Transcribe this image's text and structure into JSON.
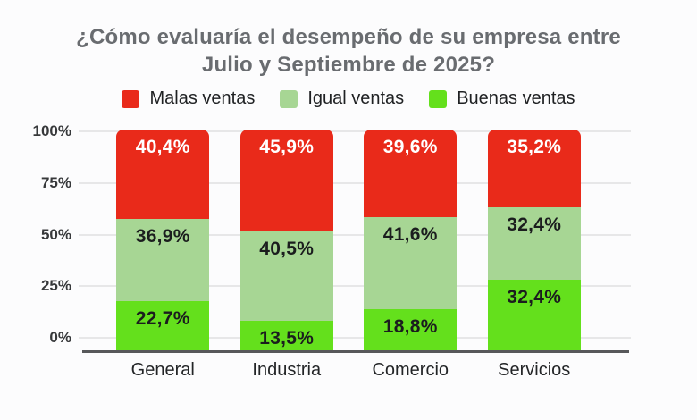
{
  "title": {
    "line1": "¿Cómo evaluaría el desempeño de su empresa entre",
    "line2": "Julio y Septiembre de 2025?"
  },
  "legend": [
    {
      "label": "Malas ventas",
      "color": "#e92a1a"
    },
    {
      "label": "Igual ventas",
      "color": "#a7d694"
    },
    {
      "label": "Buenas ventas",
      "color": "#64e01c"
    }
  ],
  "chart_data": {
    "type": "bar",
    "stacked": true,
    "title": "¿Cómo evaluaría el desempeño de su empresa entre Julio y Septiembre de 2025?",
    "categories": [
      "General",
      "Industria",
      "Comercio",
      "Servicios"
    ],
    "series": [
      {
        "name": "Malas ventas",
        "color": "#e92a1a",
        "label_color": "#ffffff",
        "values": [
          40.4,
          45.9,
          39.6,
          35.2
        ],
        "labels": [
          "40,4%",
          "45,9%",
          "39,6%",
          "35,2%"
        ]
      },
      {
        "name": "Igual ventas",
        "color": "#a7d694",
        "label_color": "#1b1d1e",
        "values": [
          36.9,
          40.5,
          41.6,
          32.4
        ],
        "labels": [
          "36,9%",
          "40,5%",
          "41,6%",
          "32,4%"
        ]
      },
      {
        "name": "Buenas ventas",
        "color": "#64e01c",
        "label_color": "#1b1d1e",
        "values": [
          22.7,
          13.5,
          18.8,
          32.4
        ],
        "labels": [
          "22,7%",
          "13,5%",
          "18,8%",
          "32,4%"
        ]
      }
    ],
    "y_ticks": [
      "100%",
      "75%",
      "50%",
      "25%",
      "0%"
    ],
    "ylim": [
      0,
      100
    ],
    "grid": true,
    "legend_position": "top",
    "colors": {
      "background": "#fcfcfd",
      "gridline": "#e7e7e8",
      "axis_line": "#57585a",
      "title_text": "#696c70"
    }
  }
}
